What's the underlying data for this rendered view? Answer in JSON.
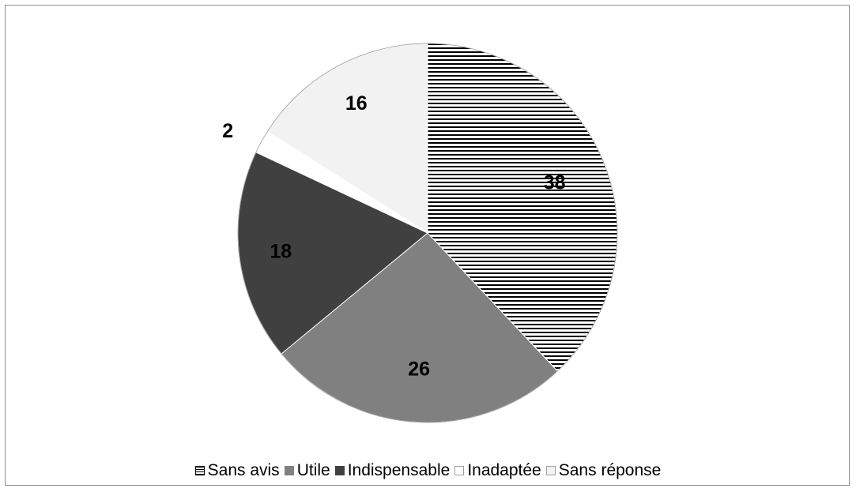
{
  "chart_data": {
    "type": "pie",
    "title": "",
    "categories": [
      "Sans avis",
      "Utile",
      "Indispensable",
      "Inadaptée",
      "Sans réponse"
    ],
    "values": [
      38,
      26,
      18,
      2,
      16
    ],
    "data_labels": [
      "38",
      "26",
      "18",
      "2",
      "16"
    ],
    "colors": [
      "#ffffff",
      "#808080",
      "#404040",
      "#ffffff",
      "#f2f2f2"
    ],
    "patterns": [
      "horizontal-stripes",
      "solid",
      "solid",
      "solid",
      "solid"
    ],
    "start_angle_deg": 0,
    "direction": "clockwise",
    "legend_position": "bottom"
  }
}
